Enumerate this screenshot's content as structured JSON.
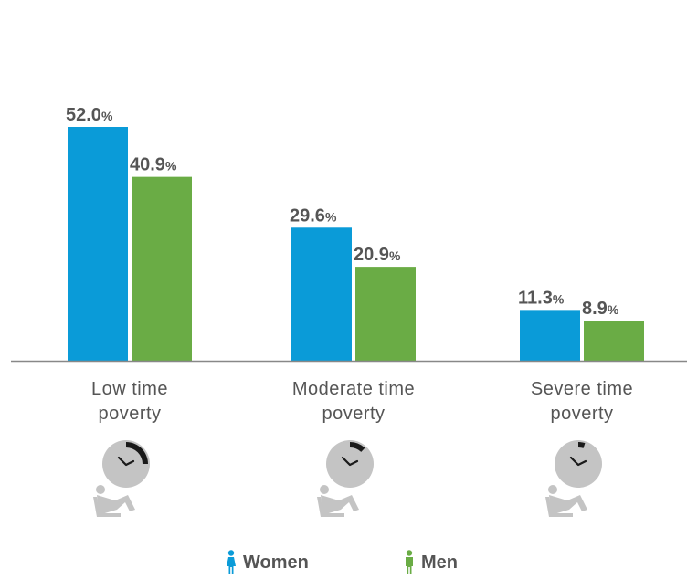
{
  "chart_data": {
    "type": "bar",
    "categories": [
      "Low time poverty",
      "Moderate time poverty",
      "Severe time poverty"
    ],
    "category_lines": [
      [
        "Low time",
        "poverty"
      ],
      [
        "Moderate time",
        "poverty"
      ],
      [
        "Severe time",
        "poverty"
      ]
    ],
    "series": [
      {
        "name": "Women",
        "values": [
          52.0,
          29.6,
          11.3
        ],
        "color": "#0a9bd8"
      },
      {
        "name": "Men",
        "values": [
          40.9,
          20.9,
          8.9
        ],
        "color": "#6aac45"
      }
    ],
    "value_labels": [
      [
        "52.0",
        "29.6",
        "11.3"
      ],
      [
        "40.9",
        "20.9",
        "8.9"
      ]
    ],
    "value_suffix": "%",
    "ylim": [
      0,
      60
    ],
    "grid": false,
    "legend_position": "bottom-center"
  },
  "icons": {
    "clock_fill_fraction": [
      0.25,
      0.12,
      0.05
    ],
    "clock_icon": "clock-icon",
    "person_icon": "reclining-person-icon"
  },
  "legend": {
    "women_label": "Women",
    "men_label": "Men",
    "women_icon": "woman-icon",
    "men_icon": "man-icon"
  }
}
